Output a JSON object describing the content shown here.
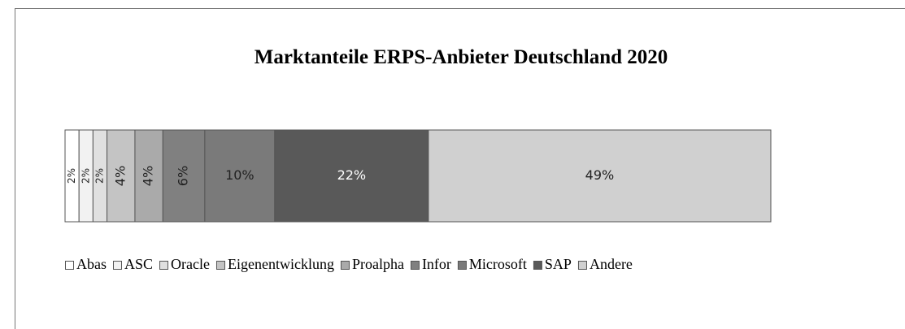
{
  "chart_data": {
    "type": "bar",
    "orientation": "horizontal",
    "stacked": true,
    "title": "Marktanteile ERPS-Anbieter Deutschland 2020",
    "series": [
      {
        "name": "Abas",
        "color": "#ffffff",
        "values": [
          2
        ],
        "value_labels": [
          "2%"
        ]
      },
      {
        "name": "ASC",
        "color": "#f2f2f2",
        "values": [
          2
        ],
        "value_labels": [
          "2%"
        ]
      },
      {
        "name": "Oracle",
        "color": "#e0e0e0",
        "values": [
          2
        ],
        "value_labels": [
          "2%"
        ]
      },
      {
        "name": "Eigenentwicklung",
        "color": "#c4c4c4",
        "values": [
          4
        ],
        "value_labels": [
          "4%"
        ]
      },
      {
        "name": "Proalpha",
        "color": "#aaaaaa",
        "values": [
          4
        ],
        "value_labels": [
          "4%"
        ]
      },
      {
        "name": "Infor",
        "color": "#808080",
        "values": [
          6
        ],
        "value_labels": [
          "6%"
        ]
      },
      {
        "name": "Microsoft",
        "color": "#7a7a7a",
        "values": [
          10
        ],
        "value_labels": [
          "10%"
        ]
      },
      {
        "name": "SAP",
        "color": "#595959",
        "values": [
          22
        ],
        "value_labels": [
          "22%"
        ]
      },
      {
        "name": "Andere",
        "color": "#d0d0d0",
        "values": [
          49
        ],
        "value_labels": [
          "49%"
        ]
      }
    ]
  }
}
